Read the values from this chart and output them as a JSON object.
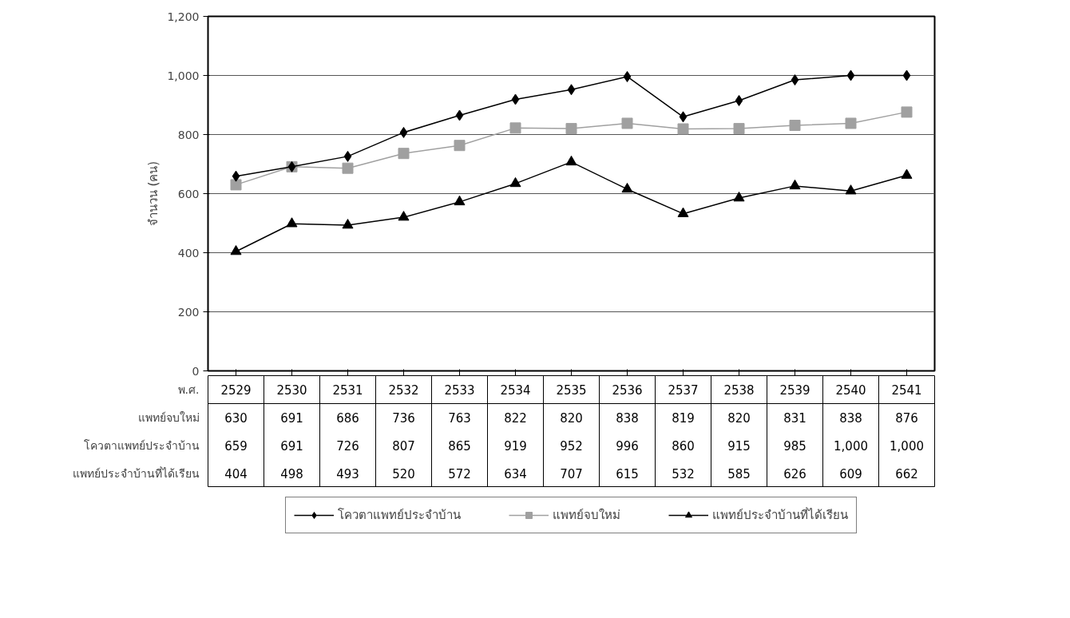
{
  "chart_data": {
    "type": "line",
    "ylabel": "จำนวน (คน)",
    "xlabel": "พ.ศ.",
    "categories": [
      "2529",
      "2530",
      "2531",
      "2532",
      "2533",
      "2534",
      "2535",
      "2536",
      "2537",
      "2538",
      "2539",
      "2540",
      "2541"
    ],
    "series": [
      {
        "name": "แพทย์จบใหม่",
        "color": "#a0a0a0",
        "marker": "square",
        "values": [
          630,
          691,
          686,
          736,
          763,
          822,
          820,
          838,
          819,
          820,
          831,
          838,
          876
        ],
        "value_labels": [
          "630",
          "691",
          "686",
          "736",
          "763",
          "822",
          "820",
          "838",
          "819",
          "820",
          "831",
          "838",
          "876"
        ]
      },
      {
        "name": "โควตาแพทย์ประจำบ้าน",
        "color": "#000000",
        "marker": "diamond",
        "values": [
          659,
          691,
          726,
          807,
          865,
          919,
          952,
          996,
          860,
          915,
          985,
          1000,
          1000
        ],
        "value_labels": [
          "659",
          "691",
          "726",
          "807",
          "865",
          "919",
          "952",
          "996",
          "860",
          "915",
          "985",
          "1,000",
          "1,000"
        ]
      },
      {
        "name": "แพทย์ประจำบ้านที่ได้เรียน",
        "color": "#000000",
        "marker": "triangle",
        "values": [
          404,
          498,
          493,
          520,
          572,
          634,
          707,
          615,
          532,
          585,
          626,
          609,
          662
        ],
        "value_labels": [
          "404",
          "498",
          "493",
          "520",
          "572",
          "634",
          "707",
          "615",
          "532",
          "585",
          "626",
          "609",
          "662"
        ]
      }
    ],
    "ylim": [
      0,
      1200
    ],
    "yticks": [
      0,
      200,
      400,
      600,
      800,
      {
        "value": 1000,
        "label": "1,000"
      },
      {
        "value": 1200,
        "label": "1,200"
      }
    ],
    "grid": "y",
    "legend": "bottom"
  }
}
